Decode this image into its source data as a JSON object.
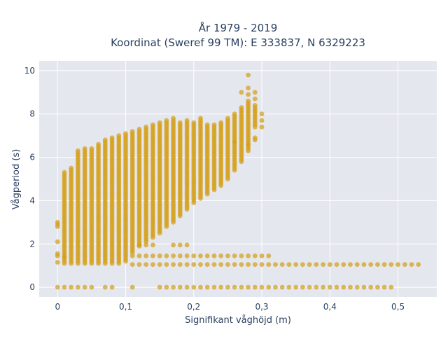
{
  "chart_data": {
    "type": "scatter",
    "title_line1": "År 1979 - 2019",
    "title_line2": "Koordinat (Sweref 99 TM): E 333837, N 6329223",
    "xlabel": "Signifikant våghöjd (m)",
    "ylabel": "Vågperiod (s)",
    "xlim": [
      -0.027,
      0.557
    ],
    "ylim": [
      -0.45,
      10.45
    ],
    "x_ticks": [
      0,
      0.1,
      0.2,
      0.3,
      0.4,
      0.5
    ],
    "x_tick_labels": [
      "0",
      "0,1",
      "0,2",
      "0,3",
      "0,4",
      "0,5"
    ],
    "y_ticks": [
      0,
      2,
      4,
      6,
      8,
      10
    ],
    "y_tick_labels": [
      "0",
      "2",
      "4",
      "6",
      "8",
      "10"
    ],
    "grid": true,
    "marker_color": "#d4a017",
    "plot_bg": "#e5e7ef",
    "columns": [
      {
        "x": 0.0,
        "ymin": 2.8,
        "ymax": 3.0
      },
      {
        "x": 0.01,
        "ymin": 1.1,
        "ymax": 5.3
      },
      {
        "x": 0.02,
        "ymin": 1.1,
        "ymax": 5.5
      },
      {
        "x": 0.03,
        "ymin": 1.1,
        "ymax": 6.3
      },
      {
        "x": 0.04,
        "ymin": 1.1,
        "ymax": 6.4
      },
      {
        "x": 0.05,
        "ymin": 1.1,
        "ymax": 6.4
      },
      {
        "x": 0.06,
        "ymin": 1.1,
        "ymax": 6.6
      },
      {
        "x": 0.07,
        "ymin": 1.1,
        "ymax": 6.8
      },
      {
        "x": 0.08,
        "ymin": 1.1,
        "ymax": 6.9
      },
      {
        "x": 0.09,
        "ymin": 1.1,
        "ymax": 7.0
      },
      {
        "x": 0.1,
        "ymin": 1.2,
        "ymax": 7.1
      },
      {
        "x": 0.11,
        "ymin": 1.6,
        "ymax": 7.2
      },
      {
        "x": 0.12,
        "ymin": 1.9,
        "ymax": 7.3
      },
      {
        "x": 0.13,
        "ymin": 2.1,
        "ymax": 7.4
      },
      {
        "x": 0.14,
        "ymin": 2.3,
        "ymax": 7.5
      },
      {
        "x": 0.15,
        "ymin": 2.5,
        "ymax": 7.6
      },
      {
        "x": 0.16,
        "ymin": 2.8,
        "ymax": 7.7
      },
      {
        "x": 0.17,
        "ymin": 3.0,
        "ymax": 7.8
      },
      {
        "x": 0.18,
        "ymin": 3.3,
        "ymax": 7.6
      },
      {
        "x": 0.19,
        "ymin": 3.6,
        "ymax": 7.7
      },
      {
        "x": 0.2,
        "ymin": 3.9,
        "ymax": 7.6
      },
      {
        "x": 0.21,
        "ymin": 4.1,
        "ymax": 7.8
      },
      {
        "x": 0.22,
        "ymin": 4.3,
        "ymax": 7.5
      },
      {
        "x": 0.23,
        "ymin": 4.5,
        "ymax": 7.5
      },
      {
        "x": 0.24,
        "ymin": 4.7,
        "ymax": 7.6
      },
      {
        "x": 0.25,
        "ymin": 5.0,
        "ymax": 7.8
      },
      {
        "x": 0.26,
        "ymin": 5.4,
        "ymax": 8.0
      },
      {
        "x": 0.27,
        "ymin": 5.8,
        "ymax": 8.3
      },
      {
        "x": 0.28,
        "ymin": 6.4,
        "ymax": 8.6
      },
      {
        "x": 0.29,
        "ymin": 7.4,
        "ymax": 8.4
      }
    ],
    "bands": [
      {
        "y": 0.0,
        "xs": [
          0.0,
          0.01,
          0.02,
          0.03,
          0.04,
          0.05,
          0.07,
          0.08,
          0.11,
          0.15,
          0.16,
          0.17,
          0.18,
          0.19,
          0.2,
          0.21,
          0.22,
          0.23,
          0.24,
          0.25,
          0.26,
          0.27,
          0.28,
          0.29,
          0.3,
          0.31,
          0.32,
          0.33,
          0.34,
          0.35,
          0.36,
          0.37,
          0.38,
          0.39,
          0.4,
          0.41,
          0.42,
          0.43,
          0.44,
          0.45,
          0.46,
          0.47,
          0.48,
          0.49
        ]
      },
      {
        "y": 1.05,
        "xs": [
          0.11,
          0.12,
          0.13,
          0.14,
          0.15,
          0.16,
          0.17,
          0.18,
          0.19,
          0.2,
          0.21,
          0.22,
          0.23,
          0.24,
          0.25,
          0.26,
          0.27,
          0.28,
          0.29,
          0.3,
          0.31,
          0.32,
          0.33,
          0.34,
          0.35,
          0.36,
          0.37,
          0.38,
          0.39,
          0.4,
          0.41,
          0.42,
          0.43,
          0.44,
          0.45,
          0.46,
          0.47,
          0.48,
          0.49,
          0.5,
          0.51,
          0.52,
          0.53
        ]
      },
      {
        "y": 1.45,
        "xs": [
          0.11,
          0.12,
          0.13,
          0.14,
          0.15,
          0.16,
          0.17,
          0.18,
          0.19,
          0.2,
          0.21,
          0.22,
          0.23,
          0.24,
          0.25,
          0.26,
          0.27,
          0.28,
          0.29,
          0.3,
          0.31
        ]
      },
      {
        "y": 1.95,
        "xs": [
          0.12,
          0.13,
          0.14,
          0.17,
          0.18,
          0.19
        ]
      }
    ],
    "outliers": [
      {
        "x": 0.0,
        "y": 2.1
      },
      {
        "x": 0.0,
        "y": 1.55
      },
      {
        "x": 0.0,
        "y": 1.45
      },
      {
        "x": 0.0,
        "y": 1.15
      },
      {
        "x": 0.01,
        "y": 1.4
      },
      {
        "x": 0.28,
        "y": 9.8
      },
      {
        "x": 0.28,
        "y": 9.2
      },
      {
        "x": 0.28,
        "y": 8.9
      },
      {
        "x": 0.28,
        "y": 6.6
      },
      {
        "x": 0.28,
        "y": 6.3
      },
      {
        "x": 0.29,
        "y": 9.0
      },
      {
        "x": 0.29,
        "y": 8.7
      },
      {
        "x": 0.29,
        "y": 6.9
      },
      {
        "x": 0.29,
        "y": 6.8
      },
      {
        "x": 0.3,
        "y": 8.0
      },
      {
        "x": 0.3,
        "y": 7.7
      },
      {
        "x": 0.3,
        "y": 7.4
      },
      {
        "x": 0.26,
        "y": 6.7
      },
      {
        "x": 0.27,
        "y": 9.0
      }
    ]
  }
}
